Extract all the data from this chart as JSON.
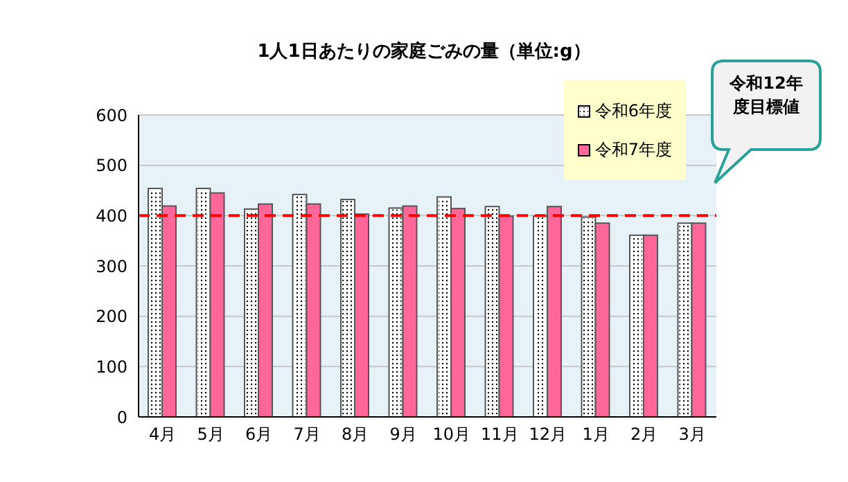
{
  "chart_data": {
    "type": "bar",
    "title": "1人1日あたりの家庭ごみの量（単位:g）",
    "categories": [
      "4月",
      "5月",
      "6月",
      "7月",
      "8月",
      "9月",
      "10月",
      "11月",
      "12月",
      "1月",
      "2月",
      "3月"
    ],
    "series": [
      {
        "name": "令和6年度",
        "color": "#ffffff",
        "values": [
          454,
          454,
          413,
          442,
          432,
          415,
          437,
          418,
          399,
          397,
          361,
          385
        ]
      },
      {
        "name": "令和7年度",
        "color": "#ff6699",
        "values": [
          419,
          445,
          423,
          423,
          403,
          419,
          414,
          399,
          418,
          385,
          361,
          385
        ]
      }
    ],
    "ylim": [
      0,
      600
    ],
    "yticks": [
      0,
      100,
      200,
      300,
      400,
      500,
      600
    ],
    "grid": "y",
    "legend": "top right",
    "annotations": [
      "令和12年度目標値"
    ],
    "ref_lines": [
      {
        "axis": "y",
        "value": 400,
        "color": "#ff0000",
        "line_style": "dashed"
      }
    ]
  }
}
